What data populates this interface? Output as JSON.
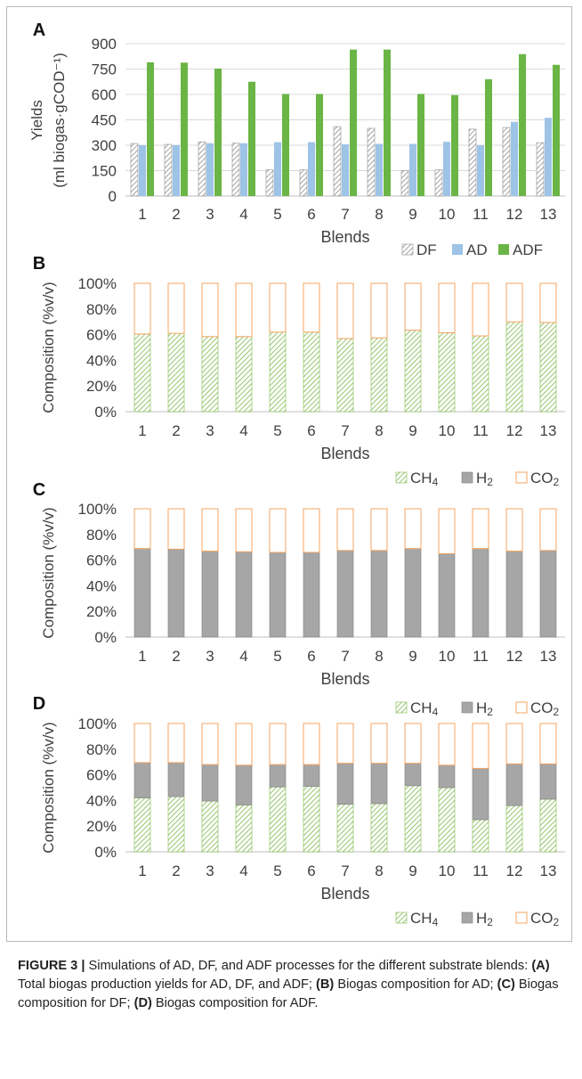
{
  "chart_data": [
    {
      "panel": "A",
      "type": "bar",
      "ylabel_line1": "Yields",
      "ylabel_line2": "(ml biogas·gCOD⁻¹)",
      "xlabel": "Blends",
      "categories": [
        "1",
        "2",
        "3",
        "4",
        "5",
        "6",
        "7",
        "8",
        "9",
        "10",
        "11",
        "12",
        "13"
      ],
      "ylim": [
        0,
        900
      ],
      "yticks": [
        "0",
        "150",
        "300",
        "450",
        "600",
        "750",
        "900"
      ],
      "grid": true,
      "legend_position": "bottom-right",
      "series": [
        {
          "name": "DF",
          "values": [
            310,
            305,
            320,
            312,
            155,
            155,
            410,
            400,
            150,
            155,
            395,
            405,
            315
          ]
        },
        {
          "name": "AD",
          "values": [
            300,
            300,
            312,
            312,
            318,
            318,
            305,
            308,
            308,
            320,
            300,
            438,
            462
          ]
        },
        {
          "name": "ADF",
          "values": [
            790,
            788,
            753,
            675,
            603,
            603,
            865,
            865,
            603,
            596,
            690,
            838,
            775
          ]
        }
      ]
    },
    {
      "panel": "B",
      "type": "bar",
      "stacked": true,
      "ylabel": "Composition (%v/v)",
      "xlabel": "Blends",
      "categories": [
        "1",
        "2",
        "3",
        "4",
        "5",
        "6",
        "7",
        "8",
        "9",
        "10",
        "11",
        "12",
        "13"
      ],
      "ylim": [
        0,
        100
      ],
      "yticks": [
        "0%",
        "20%",
        "40%",
        "60%",
        "80%",
        "100%"
      ],
      "legend_position": "bottom-right",
      "series": [
        {
          "name": "CH4",
          "values": [
            60.5,
            61,
            58.5,
            58.5,
            62,
            62,
            57,
            57.5,
            63.5,
            61.5,
            59,
            70,
            69.5
          ]
        },
        {
          "name": "H2",
          "values": [
            0,
            0,
            0,
            0,
            0,
            0,
            0,
            0,
            0,
            0,
            0,
            0,
            0
          ]
        },
        {
          "name": "CO2",
          "values": [
            39.5,
            39,
            41.5,
            41.5,
            38,
            38,
            43,
            42.5,
            36.5,
            38.5,
            41,
            30,
            30.5
          ]
        }
      ]
    },
    {
      "panel": "C",
      "type": "bar",
      "stacked": true,
      "ylabel": "Composition (%v/v)",
      "xlabel": "Blends",
      "categories": [
        "1",
        "2",
        "3",
        "4",
        "5",
        "6",
        "7",
        "8",
        "9",
        "10",
        "11",
        "12",
        "13"
      ],
      "ylim": [
        0,
        100
      ],
      "yticks": [
        "0%",
        "20%",
        "40%",
        "60%",
        "80%",
        "100%"
      ],
      "legend_position": "bottom-right",
      "series": [
        {
          "name": "CH4",
          "values": [
            0,
            0,
            0,
            0,
            0,
            0,
            0,
            0,
            0,
            0,
            0,
            0,
            0
          ]
        },
        {
          "name": "H2",
          "values": [
            69,
            68.5,
            67,
            66.5,
            66,
            66,
            67.5,
            67.5,
            69,
            65,
            69,
            67,
            67.5
          ]
        },
        {
          "name": "CO2",
          "values": [
            31,
            31.5,
            33,
            33.5,
            34,
            34,
            32.5,
            32.5,
            31,
            35,
            31,
            33,
            32.5
          ]
        }
      ]
    },
    {
      "panel": "D",
      "type": "bar",
      "stacked": true,
      "ylabel": "Composition (%v/v)",
      "xlabel": "Blends",
      "categories": [
        "1",
        "2",
        "3",
        "4",
        "5",
        "6",
        "7",
        "8",
        "9",
        "10",
        "11",
        "12",
        "13"
      ],
      "ylim": [
        0,
        100
      ],
      "yticks": [
        "0%",
        "20%",
        "40%",
        "60%",
        "80%",
        "100%"
      ],
      "legend_position": "bottom-right",
      "series": [
        {
          "name": "CH4",
          "values": [
            42,
            43,
            39.5,
            36.5,
            50.5,
            51,
            37,
            37.5,
            51.5,
            50,
            25,
            36,
            41
          ]
        },
        {
          "name": "H2",
          "values": [
            27.5,
            26.5,
            28.5,
            31,
            17.5,
            17,
            32,
            31.5,
            17.5,
            17.5,
            40,
            32.5,
            27.5
          ]
        },
        {
          "name": "CO2",
          "values": [
            30.5,
            30.5,
            32,
            32.5,
            32,
            32,
            31,
            31,
            31,
            32.5,
            35,
            31.5,
            31.5
          ]
        }
      ]
    }
  ],
  "caption": {
    "figure_label": "FIGURE 3 |",
    "text_1": " Simulations of AD, DF, and ADF processes for the different substrate blends: ",
    "tag_a": "(A)",
    "text_2": " Total biogas production yields for AD, DF, and ADF; ",
    "tag_b": "(B)",
    "text_3": " Biogas composition for AD; ",
    "tag_c": "(C)",
    "text_4": " Biogas composition for DF; ",
    "tag_d": "(D)",
    "text_5": " Biogas composition for ADF."
  },
  "colors": {
    "df_hatch": "#8c8c8c",
    "ad": "#9dc3e6",
    "adf": "#6ab545",
    "ch4_hatch": "#7cb84a",
    "h2": "#a6a6a6",
    "h2_border": "#7f7f7f",
    "co2_border": "#f4a460",
    "grid": "#d9d9d9",
    "axis": "#bfbfbf",
    "text": "#404040"
  }
}
